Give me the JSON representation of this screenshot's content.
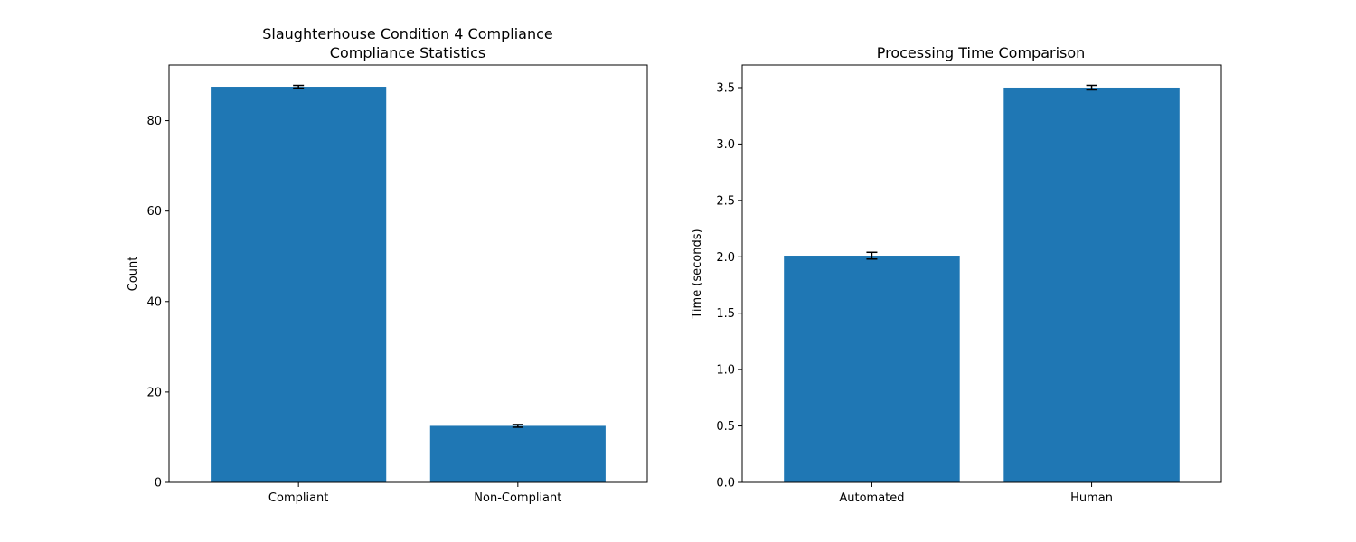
{
  "figure": {
    "charts": [
      {
        "title_line1": "Slaughterhouse Condition 4 Compliance",
        "title_line2": "Compliance Statistics"
      },
      {
        "title_line1": "Processing Time Comparison",
        "title_line2": ""
      }
    ]
  },
  "colors": {
    "bar": "#1f77b4",
    "errorbar": "#000000",
    "axes": "#000000",
    "background": "#ffffff"
  },
  "chart_data": [
    {
      "type": "bar",
      "title": "Slaughterhouse Condition 4 Compliance\nCompliance Statistics",
      "xlabel": "",
      "ylabel": "Count",
      "categories": [
        "Compliant",
        "Non-Compliant"
      ],
      "values": [
        87.5,
        12.5
      ],
      "errors": [
        0.3,
        0.3
      ],
      "ylim": [
        0,
        92.3
      ],
      "yticks": [
        0,
        20,
        40,
        60,
        80
      ],
      "ytick_labels": [
        "0",
        "20",
        "40",
        "60",
        "80"
      ],
      "grid": false,
      "legend": "none"
    },
    {
      "type": "bar",
      "title": "Processing Time Comparison",
      "xlabel": "",
      "ylabel": "Time (seconds)",
      "categories": [
        "Automated",
        "Human"
      ],
      "values": [
        2.01,
        3.5
      ],
      "errors": [
        0.03,
        0.02
      ],
      "ylim": [
        0,
        3.7
      ],
      "yticks": [
        0,
        0.5,
        1.0,
        1.5,
        2.0,
        2.5,
        3.0,
        3.5
      ],
      "ytick_labels": [
        "0.0",
        "0.5",
        "1.0",
        "1.5",
        "2.0",
        "2.5",
        "3.0",
        "3.5"
      ],
      "grid": false,
      "legend": "none"
    }
  ]
}
